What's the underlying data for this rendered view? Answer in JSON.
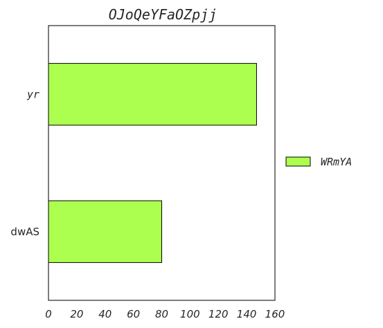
{
  "chart_data": {
    "type": "bar",
    "orientation": "horizontal",
    "title": "OJoQeYFaOZpjj",
    "categories": [
      "dwAS",
      "yr"
    ],
    "series": [
      {
        "name": "WRmYA",
        "values": [
          80,
          147
        ],
        "color": "#adff4f"
      }
    ],
    "xlim": [
      0,
      160
    ],
    "xticks": [
      "0",
      "20",
      "40",
      "60",
      "80",
      "100",
      "120",
      "140",
      "160"
    ],
    "xlabel": "",
    "ylabel": "",
    "grid": false,
    "legend_position": "right",
    "bar_edge_color": "#000000"
  }
}
